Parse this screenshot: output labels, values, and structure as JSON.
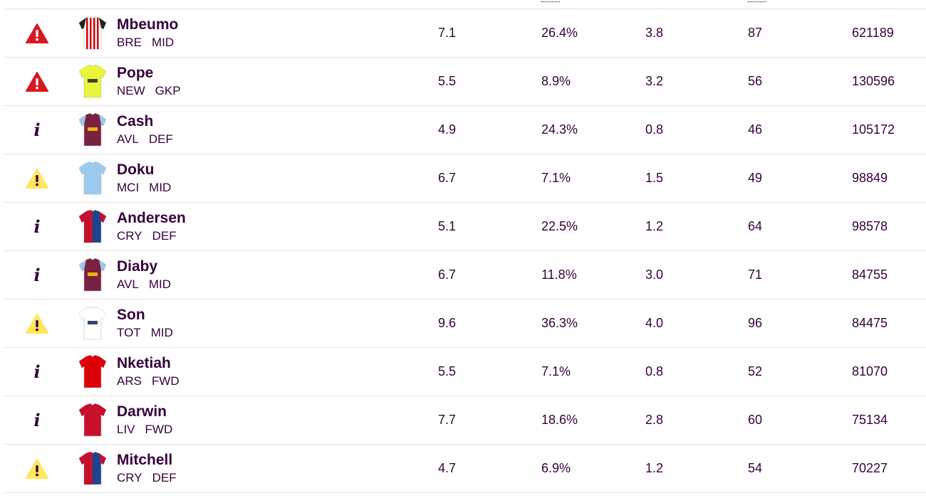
{
  "players": [
    {
      "status_icon": "red-alert-icon",
      "shirt_icon": "brentford-shirt-icon",
      "name": "Mbeumo",
      "team": "BRE",
      "position": "MID",
      "price": "7.1",
      "selected": "26.4%",
      "form": "3.8",
      "points": "87",
      "transfers": "621189"
    },
    {
      "status_icon": "red-alert-icon",
      "shirt_icon": "newcastle-gk-shirt-icon",
      "name": "Pope",
      "team": "NEW",
      "position": "GKP",
      "price": "5.5",
      "selected": "8.9%",
      "form": "3.2",
      "points": "56",
      "transfers": "130596"
    },
    {
      "status_icon": "info-icon",
      "shirt_icon": "aston-villa-shirt-icon",
      "name": "Cash",
      "team": "AVL",
      "position": "DEF",
      "price": "4.9",
      "selected": "24.3%",
      "form": "0.8",
      "points": "46",
      "transfers": "105172"
    },
    {
      "status_icon": "yellow-alert-icon",
      "shirt_icon": "man-city-shirt-icon",
      "name": "Doku",
      "team": "MCI",
      "position": "MID",
      "price": "6.7",
      "selected": "7.1%",
      "form": "1.5",
      "points": "49",
      "transfers": "98849"
    },
    {
      "status_icon": "info-icon",
      "shirt_icon": "crystal-palace-shirt-icon",
      "name": "Andersen",
      "team": "CRY",
      "position": "DEF",
      "price": "5.1",
      "selected": "22.5%",
      "form": "1.2",
      "points": "64",
      "transfers": "98578"
    },
    {
      "status_icon": "info-icon",
      "shirt_icon": "aston-villa-shirt-icon",
      "name": "Diaby",
      "team": "AVL",
      "position": "MID",
      "price": "6.7",
      "selected": "11.8%",
      "form": "3.0",
      "points": "71",
      "transfers": "84755"
    },
    {
      "status_icon": "yellow-alert-icon",
      "shirt_icon": "tottenham-shirt-icon",
      "name": "Son",
      "team": "TOT",
      "position": "MID",
      "price": "9.6",
      "selected": "36.3%",
      "form": "4.0",
      "points": "96",
      "transfers": "84475"
    },
    {
      "status_icon": "info-icon",
      "shirt_icon": "arsenal-shirt-icon",
      "name": "Nketiah",
      "team": "ARS",
      "position": "FWD",
      "price": "5.5",
      "selected": "7.1%",
      "form": "0.8",
      "points": "52",
      "transfers": "81070"
    },
    {
      "status_icon": "info-icon",
      "shirt_icon": "liverpool-shirt-icon",
      "name": "Darwin",
      "team": "LIV",
      "position": "FWD",
      "price": "7.7",
      "selected": "18.6%",
      "form": "2.8",
      "points": "60",
      "transfers": "75134"
    },
    {
      "status_icon": "yellow-alert-icon",
      "shirt_icon": "crystal-palace-shirt-icon",
      "name": "Mitchell",
      "team": "CRY",
      "position": "DEF",
      "price": "4.7",
      "selected": "6.9%",
      "form": "1.2",
      "points": "54",
      "transfers": "70227"
    }
  ],
  "colors": {
    "text": "#37003c",
    "divider": "#e5e5e5",
    "alert_red": "#d81920",
    "alert_yellow": "#ffe65b"
  }
}
